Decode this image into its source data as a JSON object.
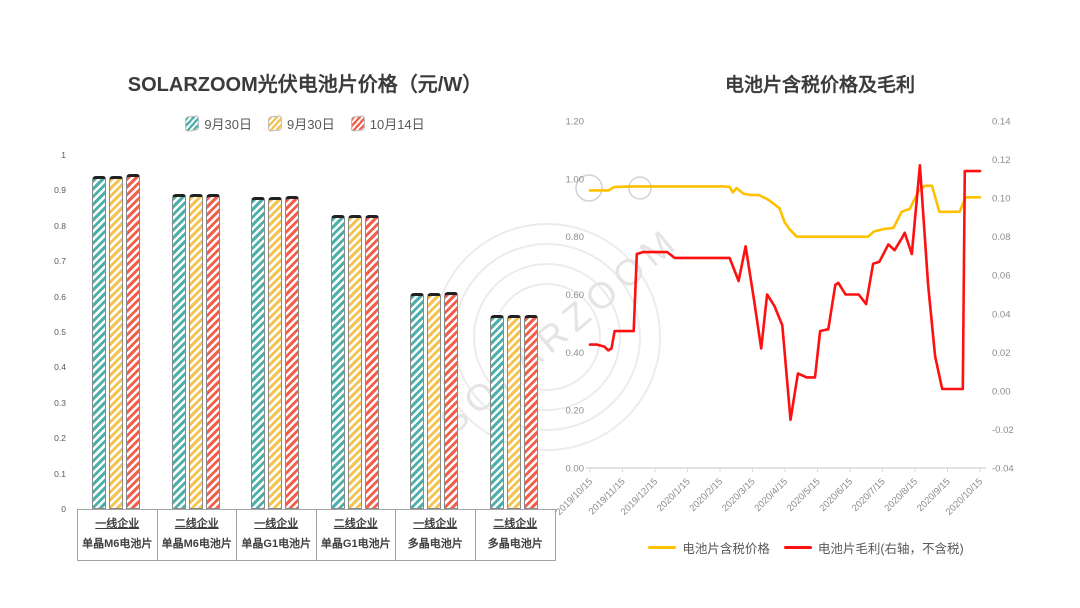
{
  "watermark": {
    "text": "SOLARZOOM"
  },
  "chart_data": [
    {
      "type": "bar",
      "title": "SOLARZOOM光伏电池片价格（元/W）",
      "xlabel": "",
      "ylabel": "",
      "ylim": [
        0,
        1
      ],
      "y_ticks": [
        "1",
        "0.9",
        "0.8",
        "0.7",
        "0.6",
        "0.5",
        "0.4",
        "0.3",
        "0.2",
        "0.1",
        "0"
      ],
      "grid": false,
      "legend_position": "top",
      "categories": [
        {
          "tier": "一线企业",
          "product": "单晶M6电池片"
        },
        {
          "tier": "二线企业",
          "product": "单晶M6电池片"
        },
        {
          "tier": "一线企业",
          "product": "单晶G1电池片"
        },
        {
          "tier": "二线企业",
          "product": "单晶G1电池片"
        },
        {
          "tier": "一线企业",
          "product": "多晶电池片"
        },
        {
          "tier": "二线企业",
          "product": "多晶电池片"
        }
      ],
      "series": [
        {
          "name": "9月30日",
          "color": "#4fb0aa",
          "values": [
            0.94,
            0.89,
            0.88,
            0.83,
            0.61,
            0.547
          ]
        },
        {
          "name": "9月30日",
          "color": "#f4c350",
          "values": [
            0.94,
            0.89,
            0.88,
            0.83,
            0.61,
            0.547
          ]
        },
        {
          "name": "10月14日",
          "color": "#f2604d",
          "values": [
            0.945,
            0.89,
            0.885,
            0.83,
            0.612,
            0.548
          ]
        }
      ]
    },
    {
      "type": "line",
      "title": "电池片含税价格及毛利",
      "xlabel": "",
      "ylabel": "",
      "grid": false,
      "legend_position": "bottom",
      "left_axis": {
        "min": 0,
        "max": 1.2,
        "ticks": [
          "0.00",
          "0.20",
          "0.40",
          "0.60",
          "0.80",
          "1.00",
          "1.20"
        ]
      },
      "right_axis": {
        "min": -0.04,
        "max": 0.14,
        "ticks": [
          "-0.04",
          "-0.02",
          "0.00",
          "0.02",
          "0.04",
          "0.06",
          "0.08",
          "0.10",
          "0.12",
          "0.14"
        ]
      },
      "x_ticks": [
        "2019/10/15",
        "2019/11/15",
        "2019/12/15",
        "2020/1/15",
        "2020/2/15",
        "2020/3/15",
        "2020/4/15",
        "2020/5/15",
        "2020/6/15",
        "2020/7/15",
        "2020/8/15",
        "2020/9/15",
        "2020/10/15"
      ],
      "series": [
        {
          "name": "电池片含税价格",
          "axis": "left",
          "color": "#ffc000",
          "points": [
            [
              0.0,
              0.96
            ],
            [
              0.026,
              0.96
            ],
            [
              0.047,
              0.96
            ],
            [
              0.063,
              0.972
            ],
            [
              0.112,
              0.974
            ],
            [
              0.172,
              0.974
            ],
            [
              0.235,
              0.974
            ],
            [
              0.298,
              0.974
            ],
            [
              0.345,
              0.974
            ],
            [
              0.358,
              0.972
            ],
            [
              0.366,
              0.953
            ],
            [
              0.376,
              0.968
            ],
            [
              0.394,
              0.948
            ],
            [
              0.413,
              0.944
            ],
            [
              0.433,
              0.944
            ],
            [
              0.454,
              0.93
            ],
            [
              0.467,
              0.918
            ],
            [
              0.486,
              0.898
            ],
            [
              0.499,
              0.85
            ],
            [
              0.512,
              0.825
            ],
            [
              0.53,
              0.8
            ],
            [
              0.564,
              0.8
            ],
            [
              0.616,
              0.8
            ],
            [
              0.668,
              0.8
            ],
            [
              0.713,
              0.8
            ],
            [
              0.728,
              0.818
            ],
            [
              0.752,
              0.826
            ],
            [
              0.778,
              0.83
            ],
            [
              0.799,
              0.886
            ],
            [
              0.82,
              0.896
            ],
            [
              0.843,
              0.96
            ],
            [
              0.859,
              0.976
            ],
            [
              0.877,
              0.976
            ],
            [
              0.896,
              0.886
            ],
            [
              0.916,
              0.886
            ],
            [
              0.948,
              0.886
            ],
            [
              0.963,
              0.936
            ],
            [
              0.982,
              0.936
            ],
            [
              1.0,
              0.936
            ]
          ]
        },
        {
          "name": "电池片毛利(右轴，不含税)",
          "axis": "right",
          "color": "#fe1010",
          "points": [
            [
              0.0,
              0.024
            ],
            [
              0.018,
              0.024
            ],
            [
              0.037,
              0.023
            ],
            [
              0.047,
              0.021
            ],
            [
              0.055,
              0.022
            ],
            [
              0.063,
              0.031
            ],
            [
              0.112,
              0.031
            ],
            [
              0.12,
              0.071
            ],
            [
              0.136,
              0.072
            ],
            [
              0.198,
              0.072
            ],
            [
              0.217,
              0.069
            ],
            [
              0.277,
              0.069
            ],
            [
              0.358,
              0.069
            ],
            [
              0.381,
              0.057
            ],
            [
              0.399,
              0.075
            ],
            [
              0.42,
              0.048
            ],
            [
              0.439,
              0.022
            ],
            [
              0.454,
              0.05
            ],
            [
              0.473,
              0.044
            ],
            [
              0.493,
              0.034
            ],
            [
              0.514,
              -0.015
            ],
            [
              0.533,
              0.009
            ],
            [
              0.556,
              0.007
            ],
            [
              0.577,
              0.007
            ],
            [
              0.59,
              0.031
            ],
            [
              0.611,
              0.032
            ],
            [
              0.629,
              0.055
            ],
            [
              0.637,
              0.056
            ],
            [
              0.655,
              0.05
            ],
            [
              0.689,
              0.05
            ],
            [
              0.708,
              0.045
            ],
            [
              0.726,
              0.066
            ],
            [
              0.742,
              0.067
            ],
            [
              0.765,
              0.076
            ],
            [
              0.781,
              0.073
            ],
            [
              0.799,
              0.079
            ],
            [
              0.807,
              0.082
            ],
            [
              0.825,
              0.071
            ],
            [
              0.846,
              0.117
            ],
            [
              0.867,
              0.055
            ],
            [
              0.885,
              0.018
            ],
            [
              0.903,
              0.001
            ],
            [
              0.943,
              0.001
            ],
            [
              0.956,
              0.001
            ],
            [
              0.961,
              0.114
            ],
            [
              0.982,
              0.114
            ],
            [
              1.0,
              0.114
            ]
          ]
        }
      ]
    }
  ]
}
